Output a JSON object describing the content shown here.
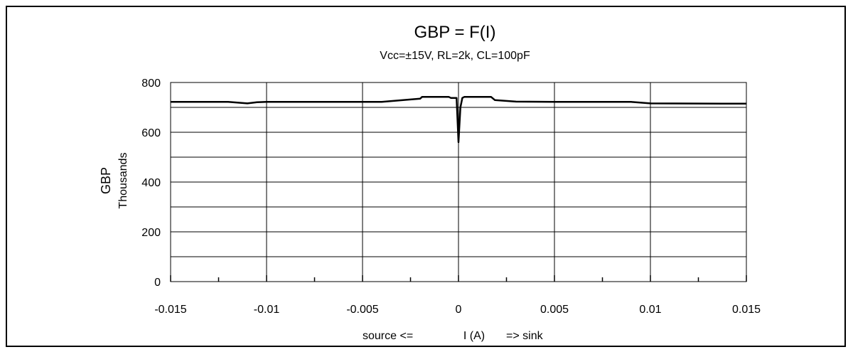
{
  "chart_data": {
    "type": "line",
    "title": "GBP = F(I)",
    "subtitle": "Vcc=±15V, RL=2k, CL=100pF",
    "ylabel": "GBP",
    "ylabel_unit": "Thousands",
    "xlabel": {
      "left": "source <=",
      "center": "I (A)",
      "right": "=> sink"
    },
    "xlim": [
      -0.015,
      0.015
    ],
    "ylim": [
      0,
      800
    ],
    "x_ticks": [
      -0.015,
      -0.01,
      -0.005,
      0,
      0.005,
      0.01,
      0.015
    ],
    "x_tick_labels": [
      "-0.015",
      "-0.01",
      "-0.005",
      "0",
      "0.005",
      "0.01",
      "0.015"
    ],
    "y_ticks": [
      0,
      200,
      400,
      600,
      800
    ],
    "y_tick_labels": [
      "0",
      "200",
      "400",
      "600",
      "800"
    ],
    "grid": true,
    "legend": "none",
    "line_color": "#000000",
    "series": [
      {
        "values": [
          [
            -0.015,
            722
          ],
          [
            -0.012,
            722
          ],
          [
            -0.011,
            716
          ],
          [
            -0.0105,
            721
          ],
          [
            -0.01,
            722
          ],
          [
            -0.005,
            722
          ],
          [
            -0.004,
            722
          ],
          [
            -0.002,
            735
          ],
          [
            -0.0019,
            742
          ],
          [
            -0.0005,
            742
          ],
          [
            -0.0004,
            738
          ],
          [
            -0.0001,
            738
          ],
          [
            0.0,
            560
          ],
          [
            0.0001,
            700
          ],
          [
            0.0002,
            738
          ],
          [
            0.0003,
            742
          ],
          [
            0.0017,
            742
          ],
          [
            0.0019,
            729
          ],
          [
            0.003,
            723
          ],
          [
            0.005,
            722
          ],
          [
            0.009,
            722
          ],
          [
            0.01,
            716
          ],
          [
            0.015,
            715
          ]
        ]
      }
    ]
  }
}
